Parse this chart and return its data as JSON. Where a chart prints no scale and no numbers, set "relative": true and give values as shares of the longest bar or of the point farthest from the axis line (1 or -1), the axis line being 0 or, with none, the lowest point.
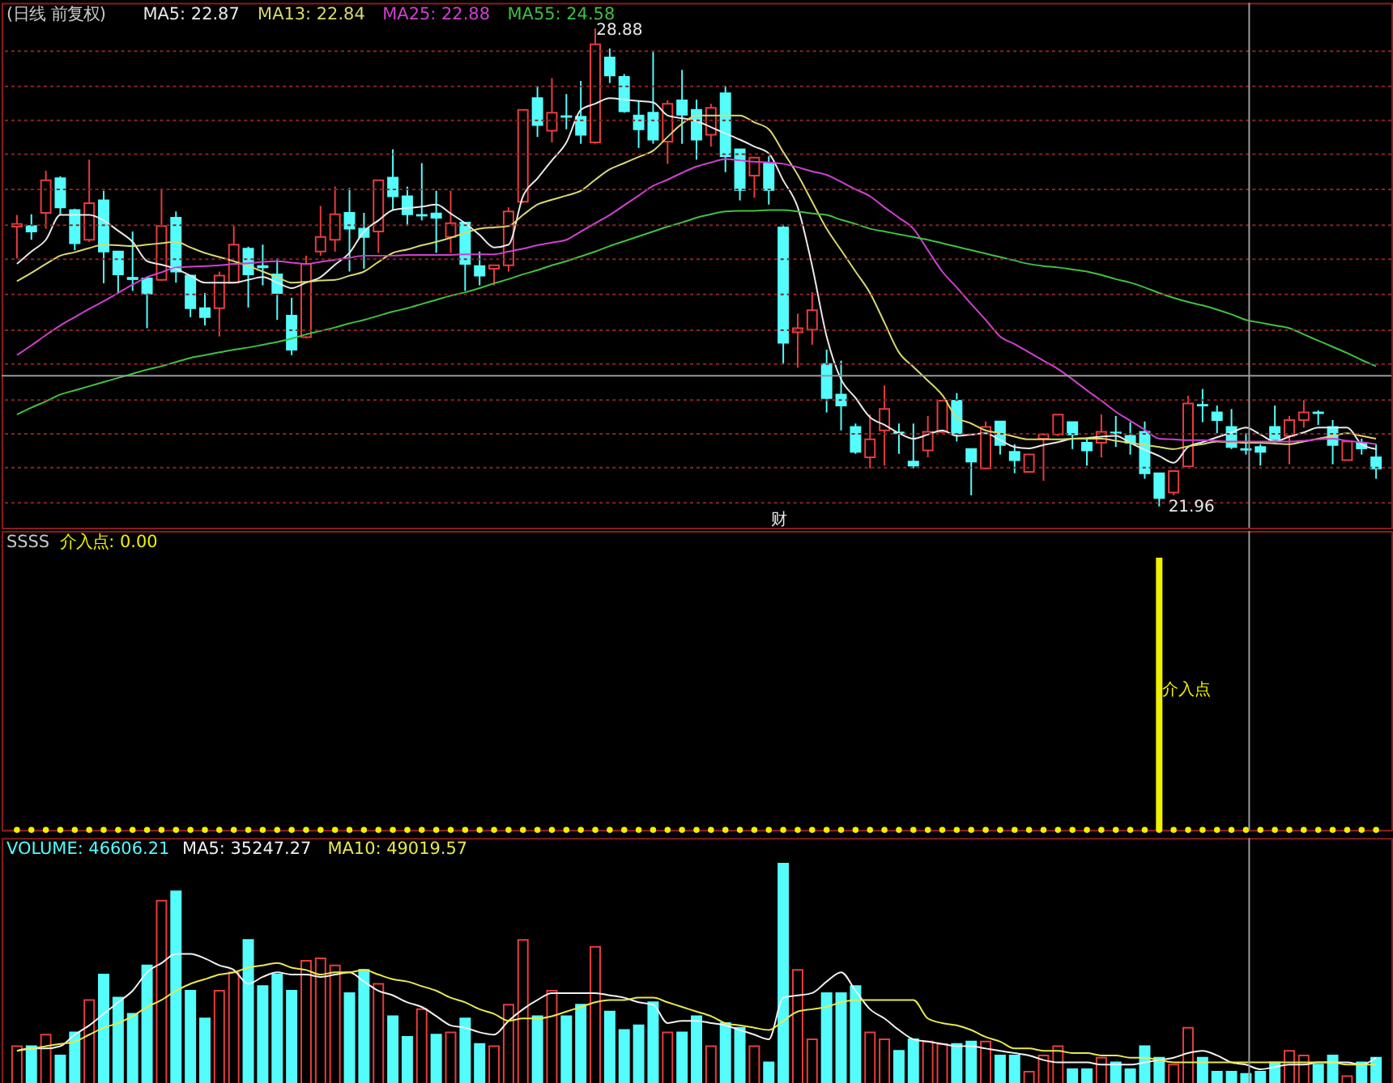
{
  "chart_data": [
    {
      "type": "candlestick",
      "title": "(日线 前复权)",
      "tick_labels": false,
      "grid": "y",
      "categories": [
        null,
        null,
        null,
        null,
        null,
        null,
        null,
        null,
        null,
        null,
        null,
        null,
        null,
        null,
        null,
        null,
        null,
        null,
        null,
        null,
        null,
        null,
        null,
        null,
        null,
        null,
        null,
        null,
        null,
        null,
        null,
        null,
        null,
        null,
        null,
        null,
        null,
        null,
        null,
        null,
        null,
        null,
        null,
        null,
        null,
        null,
        null,
        null,
        null,
        null,
        null,
        null,
        null,
        null,
        null,
        null,
        null,
        null,
        null,
        null,
        null,
        null,
        null,
        null,
        null,
        null,
        null,
        null,
        null,
        null,
        null,
        null,
        null,
        null,
        null,
        null,
        null,
        null,
        null,
        null,
        null,
        null,
        null,
        null,
        null,
        null,
        null,
        null,
        null,
        null,
        null,
        null,
        null,
        null,
        null
      ],
      "ohlc": [
        [
          26.01,
          26.18,
          25.55,
          26.05
        ],
        [
          26.02,
          26.19,
          25.82,
          25.94
        ],
        [
          26.21,
          26.82,
          25.98,
          26.68
        ],
        [
          26.71,
          26.74,
          26.18,
          26.29
        ],
        [
          26.25,
          26.27,
          25.67,
          25.77
        ],
        [
          25.82,
          26.98,
          25.79,
          26.35
        ],
        [
          26.39,
          26.53,
          25.19,
          25.65
        ],
        [
          25.65,
          25.66,
          25.05,
          25.32
        ],
        [
          25.27,
          25.94,
          25.08,
          25.25
        ],
        [
          25.26,
          25.27,
          24.54,
          25.04
        ],
        [
          25.24,
          26.54,
          25.23,
          26.02
        ],
        [
          26.14,
          26.23,
          25.2,
          25.36
        ],
        [
          25.3,
          25.31,
          24.7,
          24.83
        ],
        [
          24.83,
          25.05,
          24.58,
          24.7
        ],
        [
          24.83,
          25.36,
          24.42,
          25.3
        ],
        [
          25.2,
          26.02,
          25.19,
          25.75
        ],
        [
          25.69,
          25.72,
          24.84,
          25.32
        ],
        [
          25.44,
          25.75,
          25.16,
          25.42
        ],
        [
          25.32,
          25.55,
          24.66,
          25.05
        ],
        [
          24.72,
          24.98,
          24.15,
          24.23
        ],
        [
          24.41,
          25.59,
          24.39,
          25.47
        ],
        [
          25.65,
          26.31,
          25.59,
          25.86
        ],
        [
          25.82,
          26.59,
          25.65,
          26.19
        ],
        [
          26.21,
          26.57,
          25.36,
          25.98
        ],
        [
          25.98,
          26.21,
          25.4,
          25.86
        ],
        [
          25.94,
          26.68,
          25.63,
          26.68
        ],
        [
          26.72,
          27.13,
          26.25,
          26.45
        ],
        [
          26.45,
          26.59,
          26.02,
          26.19
        ],
        [
          26.18,
          26.93,
          26.1,
          26.17
        ],
        [
          26.2,
          26.53,
          25.63,
          26.14
        ],
        [
          25.86,
          26.53,
          25.63,
          26.06
        ],
        [
          26.07,
          26.07,
          25.08,
          25.47
        ],
        [
          25.44,
          25.65,
          25.16,
          25.3
        ],
        [
          25.4,
          25.45,
          25.16,
          25.45
        ],
        [
          25.45,
          26.29,
          25.36,
          26.23
        ],
        [
          26.37,
          27.71,
          26.35,
          27.7
        ],
        [
          27.87,
          28.05,
          27.31,
          27.48
        ],
        [
          27.4,
          28.16,
          27.23,
          27.66
        ],
        [
          27.61,
          27.93,
          27.42,
          27.6
        ],
        [
          27.6,
          28.12,
          27.21,
          27.34
        ],
        [
          27.23,
          28.88,
          27.21,
          28.65
        ],
        [
          28.46,
          28.59,
          28.09,
          28.2
        ],
        [
          28.18,
          28.22,
          27.66,
          27.68
        ],
        [
          27.62,
          27.84,
          27.15,
          27.42
        ],
        [
          27.66,
          28.54,
          27.21,
          27.27
        ],
        [
          27.24,
          27.84,
          26.92,
          27.79
        ],
        [
          27.84,
          28.28,
          27.21,
          27.63
        ],
        [
          27.7,
          27.85,
          26.98,
          27.27
        ],
        [
          27.34,
          27.79,
          27.17,
          27.73
        ],
        [
          27.94,
          28.05,
          26.8,
          27.03
        ],
        [
          27.13,
          27.13,
          26.39,
          26.54
        ],
        [
          26.75,
          27.01,
          26.43,
          27.01
        ],
        [
          26.93,
          27.03,
          26.33,
          26.54
        ],
        [
          26.0,
          26.04,
          24.02,
          24.33
        ],
        [
          24.48,
          24.75,
          23.97,
          24.54
        ],
        [
          24.52,
          25.06,
          24.3,
          24.8
        ],
        [
          24.02,
          24.23,
          23.32,
          23.53
        ],
        [
          23.58,
          24.07,
          23.06,
          23.42
        ],
        [
          23.11,
          23.16,
          22.72,
          22.75
        ],
        [
          22.67,
          23.29,
          22.51,
          22.93
        ],
        [
          23.06,
          23.71,
          22.55,
          23.37
        ],
        [
          23.03,
          23.16,
          22.72,
          23.02
        ],
        [
          22.61,
          23.16,
          22.51,
          22.55
        ],
        [
          22.77,
          23.27,
          22.67,
          23.04
        ],
        [
          23.04,
          23.49,
          23.02,
          23.49
        ],
        [
          23.49,
          23.6,
          22.9,
          23.02
        ],
        [
          22.79,
          22.79,
          22.12,
          22.61
        ],
        [
          22.51,
          23.19,
          22.51,
          23.11
        ],
        [
          23.19,
          23.19,
          22.71,
          22.85
        ],
        [
          22.75,
          22.86,
          22.44,
          22.63
        ],
        [
          22.46,
          22.71,
          22.46,
          22.71
        ],
        [
          22.94,
          23.02,
          22.33,
          23.0
        ],
        [
          23.0,
          23.29,
          22.98,
          23.29
        ],
        [
          23.18,
          23.18,
          22.79,
          23.0
        ],
        [
          22.88,
          22.94,
          22.55,
          22.77
        ],
        [
          22.88,
          23.29,
          22.67,
          23.04
        ],
        [
          23.03,
          23.27,
          22.82,
          23.02
        ],
        [
          22.98,
          23.18,
          22.71,
          22.88
        ],
        [
          23.04,
          23.19,
          22.36,
          22.44
        ],
        [
          22.44,
          22.44,
          21.96,
          22.08
        ],
        [
          22.16,
          22.47,
          22.12,
          22.47
        ],
        [
          22.54,
          23.56,
          22.53,
          23.45
        ],
        [
          23.43,
          23.66,
          23.18,
          23.42
        ],
        [
          23.32,
          23.42,
          23.02,
          23.21
        ],
        [
          23.11,
          23.37,
          22.79,
          22.82
        ],
        [
          22.79,
          23.02,
          22.71,
          22.78
        ],
        [
          22.82,
          22.86,
          22.55,
          22.75
        ],
        [
          23.11,
          23.42,
          22.93,
          22.93
        ],
        [
          22.98,
          23.27,
          22.57,
          23.21
        ],
        [
          23.21,
          23.5,
          23.1,
          23.32
        ],
        [
          23.32,
          23.35,
          23.14,
          23.31
        ],
        [
          23.11,
          23.21,
          22.57,
          22.85
        ],
        [
          22.63,
          22.9,
          22.63,
          22.9
        ],
        [
          22.88,
          22.94,
          22.71,
          22.8
        ],
        [
          22.67,
          22.86,
          22.36,
          22.51
        ]
      ],
      "colors": [
        "#e83c3c",
        "#54fcfc",
        "#e83c3c",
        "#54fcfc",
        "#54fcfc",
        "#e83c3c",
        "#54fcfc",
        "#54fcfc",
        "#54fcfc",
        "#54fcfc",
        "#e83c3c",
        "#54fcfc",
        "#54fcfc",
        "#54fcfc",
        "#e83c3c",
        "#e83c3c",
        "#54fcfc",
        "#54fcfc",
        "#54fcfc",
        "#54fcfc",
        "#e83c3c",
        "#e83c3c",
        "#e83c3c",
        "#54fcfc",
        "#54fcfc",
        "#e83c3c",
        "#54fcfc",
        "#54fcfc",
        "#54fcfc",
        "#54fcfc",
        "#e83c3c",
        "#54fcfc",
        "#54fcfc",
        "#e83c3c",
        "#e83c3c",
        "#e83c3c",
        "#54fcfc",
        "#e83c3c",
        "#54fcfc",
        "#54fcfc",
        "#e83c3c",
        "#54fcfc",
        "#54fcfc",
        "#54fcfc",
        "#54fcfc",
        "#e83c3c",
        "#54fcfc",
        "#54fcfc",
        "#e83c3c",
        "#54fcfc",
        "#54fcfc",
        "#e83c3c",
        "#54fcfc",
        "#54fcfc",
        "#e83c3c",
        "#e83c3c",
        "#54fcfc",
        "#54fcfc",
        "#54fcfc",
        "#e83c3c",
        "#e83c3c",
        "#54fcfc",
        "#54fcfc",
        "#e83c3c",
        "#e83c3c",
        "#54fcfc",
        "#54fcfc",
        "#e83c3c",
        "#54fcfc",
        "#54fcfc",
        "#e83c3c",
        "#e83c3c",
        "#e83c3c",
        "#54fcfc",
        "#54fcfc",
        "#e83c3c",
        "#54fcfc",
        "#54fcfc",
        "#54fcfc",
        "#54fcfc",
        "#e83c3c",
        "#e83c3c",
        "#54fcfc",
        "#54fcfc",
        "#54fcfc",
        "#54fcfc",
        "#54fcfc",
        "#54fcfc",
        "#e83c3c",
        "#e83c3c",
        "#54fcfc",
        "#54fcfc",
        "#e83c3c",
        "#54fcfc",
        "#54fcfc"
      ],
      "series": [
        {
          "name": "MA5: 22.87",
          "type": "line",
          "color": "#e8e8e8",
          "values": [
            25.47,
            25.65,
            25.82,
            26.18,
            26.18,
            26.18,
            26.1,
            25.95,
            25.79,
            25.51,
            25.46,
            25.4,
            25.3,
            25.2,
            25.2,
            25.2,
            25.24,
            25.28,
            25.2,
            25.12,
            25.2,
            25.28,
            25.46,
            25.63,
            25.94,
            26.1,
            26.25,
            26.28,
            26.3,
            26.33,
            26.2,
            26.06,
            25.89,
            25.71,
            25.75,
            26.45,
            26.71,
            26.97,
            27.23,
            27.7,
            27.79,
            27.87,
            27.85,
            27.83,
            27.81,
            27.62,
            27.58,
            27.54,
            27.45,
            27.36,
            27.27,
            27.17,
            27.07,
            26.68,
            26.29,
            25.44,
            24.42,
            23.8,
            23.53,
            23.25,
            23.14,
            23.02,
            22.94,
            23.0,
            23.06,
            22.98,
            23.0,
            23.02,
            22.92,
            22.82,
            22.8,
            22.85,
            22.89,
            22.94,
            22.95,
            22.97,
            22.98,
            22.88,
            22.78,
            22.69,
            22.59,
            22.82,
            22.89,
            22.96,
            23.03,
            23.1,
            23.0,
            22.9,
            22.97,
            23.03,
            23.1,
            23.1,
            23.1,
            22.86,
            22.79
          ]
        },
        {
          "name": "MA13: 22.84",
          "type": "line",
          "color": "#d8d870",
          "values": [
            25.22,
            25.34,
            25.47,
            25.59,
            25.64,
            25.7,
            25.75,
            25.74,
            25.73,
            25.75,
            25.77,
            25.79,
            25.71,
            25.63,
            25.57,
            25.51,
            25.44,
            25.36,
            25.28,
            25.2,
            25.21,
            25.23,
            25.24,
            25.3,
            25.36,
            25.5,
            25.63,
            25.68,
            25.74,
            25.79,
            25.85,
            25.92,
            25.98,
            26.0,
            26.02,
            26.18,
            26.33,
            26.4,
            26.46,
            26.53,
            26.69,
            26.84,
            26.93,
            27.02,
            27.11,
            27.31,
            27.5,
            27.62,
            27.62,
            27.62,
            27.62,
            27.52,
            27.42,
            27.09,
            26.76,
            26.37,
            25.98,
            25.67,
            25.36,
            25.05,
            24.62,
            24.19,
            23.98,
            23.78,
            23.57,
            23.25,
            23.16,
            23.06,
            23.02,
            22.97,
            22.93,
            22.93,
            22.93,
            22.94,
            22.94,
            22.94,
            22.91,
            22.88,
            22.85,
            22.82,
            22.79,
            22.83,
            22.86,
            22.9,
            22.89,
            22.88,
            22.88,
            22.87,
            22.86,
            22.9,
            22.94,
            22.98,
            23.02,
            22.98,
            22.94
          ]
        },
        {
          "name": "MA25: 22.88",
          "type": "line",
          "color": "#d040d0",
          "values": [
            24.15,
            24.29,
            24.44,
            24.58,
            24.7,
            24.82,
            24.93,
            25.05,
            25.17,
            25.28,
            25.35,
            25.42,
            25.43,
            25.44,
            25.45,
            25.47,
            25.48,
            25.5,
            25.51,
            25.49,
            25.47,
            25.5,
            25.53,
            25.56,
            25.59,
            25.59,
            25.59,
            25.6,
            25.6,
            25.6,
            25.6,
            25.61,
            25.61,
            25.61,
            25.65,
            25.69,
            25.74,
            25.78,
            25.82,
            25.94,
            26.06,
            26.18,
            26.32,
            26.46,
            26.6,
            26.69,
            26.79,
            26.88,
            26.94,
            26.99,
            26.97,
            26.95,
            26.94,
            26.92,
            26.87,
            26.81,
            26.76,
            26.66,
            26.55,
            26.45,
            26.29,
            26.14,
            25.98,
            25.67,
            25.36,
            25.13,
            24.89,
            24.66,
            24.42,
            24.31,
            24.19,
            24.07,
            23.95,
            23.8,
            23.64,
            23.49,
            23.33,
            23.2,
            23.07,
            22.94,
            22.93,
            22.92,
            22.92,
            22.91,
            22.9,
            22.9,
            22.9,
            22.9,
            22.9,
            22.91,
            22.93,
            22.94,
            22.91,
            22.89,
            22.86
          ]
        },
        {
          "name": "MA55: 24.58",
          "type": "line",
          "color": "#40c040",
          "values": [
            23.29,
            23.39,
            23.48,
            23.58,
            23.64,
            23.7,
            23.76,
            23.82,
            23.88,
            23.94,
            23.99,
            24.05,
            24.11,
            24.15,
            24.19,
            24.23,
            24.26,
            24.3,
            24.34,
            24.39,
            24.45,
            24.5,
            24.55,
            24.61,
            24.66,
            24.72,
            24.78,
            24.83,
            24.89,
            24.95,
            25.01,
            25.06,
            25.12,
            25.19,
            25.25,
            25.32,
            25.38,
            25.45,
            25.51,
            25.58,
            25.65,
            25.73,
            25.8,
            25.87,
            25.94,
            26.01,
            26.07,
            26.14,
            26.19,
            26.23,
            26.24,
            26.24,
            26.25,
            26.25,
            26.23,
            26.2,
            26.18,
            26.11,
            26.05,
            25.98,
            25.94,
            25.9,
            25.86,
            25.82,
            25.77,
            25.72,
            25.67,
            25.62,
            25.57,
            25.52,
            25.47,
            25.44,
            25.42,
            25.39,
            25.36,
            25.31,
            25.25,
            25.2,
            25.13,
            25.05,
            24.98,
            24.92,
            24.87,
            24.81,
            24.74,
            24.66,
            24.62,
            24.58,
            24.54,
            24.45,
            24.36,
            24.27,
            24.18,
            24.08,
            23.99
          ]
        }
      ],
      "ylim": [
        21.65,
        29.25
      ],
      "yticks": [
        {
          "value": 28.55,
          "label": null
        },
        {
          "value": 28.04,
          "label": null
        },
        {
          "value": 27.55,
          "label": null
        },
        {
          "value": 27.06,
          "label": null
        },
        {
          "value": 26.55,
          "label": null
        },
        {
          "value": 26.03,
          "label": null
        },
        {
          "value": 25.54,
          "label": null
        },
        {
          "value": 25.03,
          "label": null
        },
        {
          "value": 24.51,
          "label": null
        },
        {
          "value": 24.02,
          "label": null
        },
        {
          "value": 23.5,
          "label": null
        },
        {
          "value": 23.01,
          "label": null
        },
        {
          "value": 22.52,
          "label": null
        },
        {
          "value": 22.01,
          "label": null
        }
      ],
      "ref_lines": [
        {
          "axis": "y",
          "value": 23.85,
          "color": "#9a9a9a"
        }
      ],
      "annotations": [
        "28.88",
        "21.96",
        "财"
      ]
    },
    {
      "type": "bar",
      "title": "SSSS",
      "tick_labels": false,
      "relative": true,
      "categories": [
        null,
        null,
        null,
        null,
        null,
        null,
        null,
        null,
        null,
        null,
        null,
        null,
        null,
        null,
        null,
        null,
        null,
        null,
        null,
        null,
        null,
        null,
        null,
        null,
        null,
        null,
        null,
        null,
        null,
        null,
        null,
        null,
        null,
        null,
        null,
        null,
        null,
        null,
        null,
        null,
        null,
        null,
        null,
        null,
        null,
        null,
        null,
        null,
        null,
        null,
        null,
        null,
        null,
        null,
        null,
        null,
        null,
        null,
        null,
        null,
        null,
        null,
        null,
        null,
        null,
        null,
        null,
        null,
        null,
        null,
        null,
        null,
        null,
        null,
        null,
        null,
        null,
        null,
        null,
        null,
        null,
        null,
        null,
        null,
        null,
        null,
        null,
        null,
        null,
        null,
        null,
        null,
        null,
        null,
        null
      ],
      "series": [
        {
          "name": "介入点: 0.00",
          "type": "bar",
          "color": "#f0f000",
          "values": [
            null,
            null,
            null,
            null,
            null,
            null,
            null,
            null,
            null,
            null,
            null,
            null,
            null,
            null,
            null,
            null,
            null,
            null,
            null,
            null,
            null,
            null,
            null,
            null,
            null,
            null,
            null,
            null,
            null,
            null,
            null,
            null,
            null,
            null,
            null,
            null,
            null,
            null,
            null,
            null,
            null,
            null,
            null,
            null,
            null,
            null,
            null,
            null,
            null,
            null,
            null,
            null,
            null,
            null,
            null,
            null,
            null,
            null,
            null,
            null,
            null,
            null,
            null,
            null,
            null,
            null,
            null,
            null,
            null,
            null,
            null,
            null,
            null,
            null,
            null,
            null,
            null,
            null,
            null,
            1,
            null,
            null,
            null,
            null,
            null,
            null,
            null,
            null,
            null,
            null,
            null,
            null,
            null,
            null,
            null
          ]
        },
        {
          "type": "scatter",
          "marker": "circle",
          "color": "#f0f000",
          "values": [
            0,
            0,
            0,
            0,
            0,
            0,
            0,
            0,
            0,
            0,
            0,
            0,
            0,
            0,
            0,
            0,
            0,
            0,
            0,
            0,
            0,
            0,
            0,
            0,
            0,
            0,
            0,
            0,
            0,
            0,
            0,
            0,
            0,
            0,
            0,
            0,
            0,
            0,
            0,
            0,
            0,
            0,
            0,
            0,
            0,
            0,
            0,
            0,
            0,
            0,
            0,
            0,
            0,
            0,
            0,
            0,
            0,
            0,
            0,
            0,
            0,
            0,
            0,
            0,
            0,
            0,
            0,
            0,
            0,
            0,
            0,
            0,
            0,
            0,
            0,
            0,
            0,
            0,
            0,
            0,
            0,
            0,
            0,
            0,
            0,
            0,
            0,
            0,
            0,
            0,
            0,
            0,
            0,
            0,
            0
          ]
        }
      ],
      "annotations": [
        "介入点"
      ]
    },
    {
      "type": "bar",
      "tick_labels": false,
      "relative": true,
      "categories": [
        null,
        null,
        null,
        null,
        null,
        null,
        null,
        null,
        null,
        null,
        null,
        null,
        null,
        null,
        null,
        null,
        null,
        null,
        null,
        null,
        null,
        null,
        null,
        null,
        null,
        null,
        null,
        null,
        null,
        null,
        null,
        null,
        null,
        null,
        null,
        null,
        null,
        null,
        null,
        null,
        null,
        null,
        null,
        null,
        null,
        null,
        null,
        null,
        null,
        null,
        null,
        null,
        null,
        null,
        null,
        null,
        null,
        null,
        null,
        null,
        null,
        null,
        null,
        null,
        null,
        null,
        null,
        null,
        null,
        null,
        null,
        null,
        null,
        null,
        null,
        null,
        null,
        null,
        null,
        null,
        null,
        null,
        null,
        null,
        null,
        null,
        null,
        null,
        null,
        null,
        null,
        null,
        null,
        null,
        null
      ],
      "series": [
        {
          "name": "VOLUME: 46606.21",
          "type": "bar",
          "values": [
            0.21,
            0.21,
            0.26,
            0.17,
            0.27,
            0.41,
            0.52,
            0.42,
            0.35,
            0.56,
            0.84,
            0.88,
            0.45,
            0.33,
            0.45,
            0.53,
            0.67,
            0.47,
            0.52,
            0.45,
            0.58,
            0.59,
            0.56,
            0.44,
            0.54,
            0.48,
            0.34,
            0.25,
            0.37,
            0.26,
            0.27,
            0.33,
            0.22,
            0.21,
            0.39,
            0.67,
            0.34,
            0.45,
            0.34,
            0.39,
            0.64,
            0.36,
            0.28,
            0.3,
            0.4,
            0.27,
            0.27,
            0.34,
            0.21,
            0.31,
            0.29,
            0.21,
            0.14,
            1,
            0.54,
            0.24,
            0.44,
            0.44,
            0.47,
            0.27,
            0.24,
            0.19,
            0.24,
            0.23,
            0.22,
            0.22,
            0.23,
            0.23,
            0.17,
            0.17,
            0.1,
            0.17,
            0.21,
            0.11,
            0.11,
            0.16,
            0.14,
            0.11,
            0.21,
            0.16,
            0.13,
            0.29,
            0.16,
            0.1,
            0.1,
            0.09,
            0.1,
            0.14,
            0.19,
            0.17,
            0.13,
            0.17,
            0.08,
            0.14,
            0.16
          ],
          "colors": [
            "#e83c3c",
            "#54fcfc",
            "#e83c3c",
            "#54fcfc",
            "#54fcfc",
            "#e83c3c",
            "#54fcfc",
            "#54fcfc",
            "#54fcfc",
            "#54fcfc",
            "#e83c3c",
            "#54fcfc",
            "#54fcfc",
            "#54fcfc",
            "#e83c3c",
            "#e83c3c",
            "#54fcfc",
            "#54fcfc",
            "#54fcfc",
            "#54fcfc",
            "#e83c3c",
            "#e83c3c",
            "#e83c3c",
            "#54fcfc",
            "#54fcfc",
            "#e83c3c",
            "#54fcfc",
            "#54fcfc",
            "#e83c3c",
            "#54fcfc",
            "#e83c3c",
            "#54fcfc",
            "#54fcfc",
            "#e83c3c",
            "#e83c3c",
            "#e83c3c",
            "#54fcfc",
            "#e83c3c",
            "#54fcfc",
            "#54fcfc",
            "#e83c3c",
            "#54fcfc",
            "#54fcfc",
            "#54fcfc",
            "#54fcfc",
            "#e83c3c",
            "#54fcfc",
            "#54fcfc",
            "#e83c3c",
            "#54fcfc",
            "#54fcfc",
            "#e83c3c",
            "#54fcfc",
            "#54fcfc",
            "#e83c3c",
            "#e83c3c",
            "#54fcfc",
            "#54fcfc",
            "#54fcfc",
            "#e83c3c",
            "#e83c3c",
            "#54fcfc",
            "#54fcfc",
            "#e83c3c",
            "#e83c3c",
            "#54fcfc",
            "#54fcfc",
            "#e83c3c",
            "#54fcfc",
            "#54fcfc",
            "#e83c3c",
            "#e83c3c",
            "#e83c3c",
            "#54fcfc",
            "#54fcfc",
            "#e83c3c",
            "#54fcfc",
            "#54fcfc",
            "#54fcfc",
            "#54fcfc",
            "#e83c3c",
            "#e83c3c",
            "#54fcfc",
            "#54fcfc",
            "#54fcfc",
            "#54fcfc",
            "#54fcfc",
            "#54fcfc",
            "#e83c3c",
            "#e83c3c",
            "#54fcfc",
            "#54fcfc",
            "#e83c3c",
            "#54fcfc",
            "#54fcfc"
          ]
        },
        {
          "name": "MA5: 35247.27",
          "type": "line",
          "color": "#f0f0f0",
          "values": [
            0.19,
            0.2,
            0.2,
            0.21,
            0.26,
            0.3,
            0.35,
            0.4,
            0.45,
            0.53,
            0.57,
            0.61,
            0.61,
            0.59,
            0.56,
            0.54,
            0.48,
            0.51,
            0.53,
            0.52,
            0.52,
            0.51,
            0.52,
            0.53,
            0.49,
            0.45,
            0.43,
            0.4,
            0.38,
            0.34,
            0.3,
            0.29,
            0.27,
            0.26,
            0.32,
            0.37,
            0.41,
            0.44,
            0.44,
            0.44,
            0.44,
            0.43,
            0.42,
            0.4,
            0.39,
            0.31,
            0.32,
            0.32,
            0.31,
            0.3,
            0.28,
            0.26,
            0.24,
            0.42,
            0.43,
            0.44,
            0.49,
            0.53,
            0.45,
            0.37,
            0.33,
            0.28,
            0.24,
            0.23,
            0.22,
            0.21,
            0.21,
            0.2,
            0.19,
            0.18,
            0.17,
            0.15,
            0.14,
            0.14,
            0.14,
            0.13,
            0.13,
            0.13,
            0.14,
            0.15,
            0.16,
            0.18,
            0.19,
            0.17,
            0.14,
            0.13,
            0.11,
            0.12,
            0.13,
            0.13,
            0.14,
            0.14,
            0.14,
            0.13,
            0.16
          ]
        },
        {
          "name": "MA10: 49019.57",
          "type": "line",
          "color": "#e8e850",
          "values": [
            0.19,
            0.2,
            0.21,
            0.22,
            0.23,
            0.26,
            0.29,
            0.31,
            0.34,
            0.38,
            0.41,
            0.45,
            0.48,
            0.5,
            0.52,
            0.53,
            0.55,
            0.56,
            0.57,
            0.55,
            0.54,
            0.52,
            0.53,
            0.53,
            0.54,
            0.52,
            0.5,
            0.49,
            0.47,
            0.45,
            0.42,
            0.4,
            0.37,
            0.35,
            0.32,
            0.33,
            0.33,
            0.34,
            0.36,
            0.38,
            0.4,
            0.41,
            0.41,
            0.42,
            0.42,
            0.4,
            0.38,
            0.36,
            0.34,
            0.31,
            0.3,
            0.29,
            0.28,
            0.32,
            0.36,
            0.37,
            0.38,
            0.4,
            0.41,
            0.41,
            0.41,
            0.41,
            0.41,
            0.33,
            0.31,
            0.3,
            0.28,
            0.25,
            0.23,
            0.2,
            0.2,
            0.19,
            0.19,
            0.18,
            0.18,
            0.17,
            0.17,
            0.16,
            0.16,
            0.15,
            0.14,
            0.14,
            0.14,
            0.14,
            0.14,
            0.14,
            0.14,
            0.14,
            0.14,
            0.14,
            0.14,
            0.14,
            0.13,
            0.13,
            0.13
          ]
        }
      ]
    }
  ]
}
